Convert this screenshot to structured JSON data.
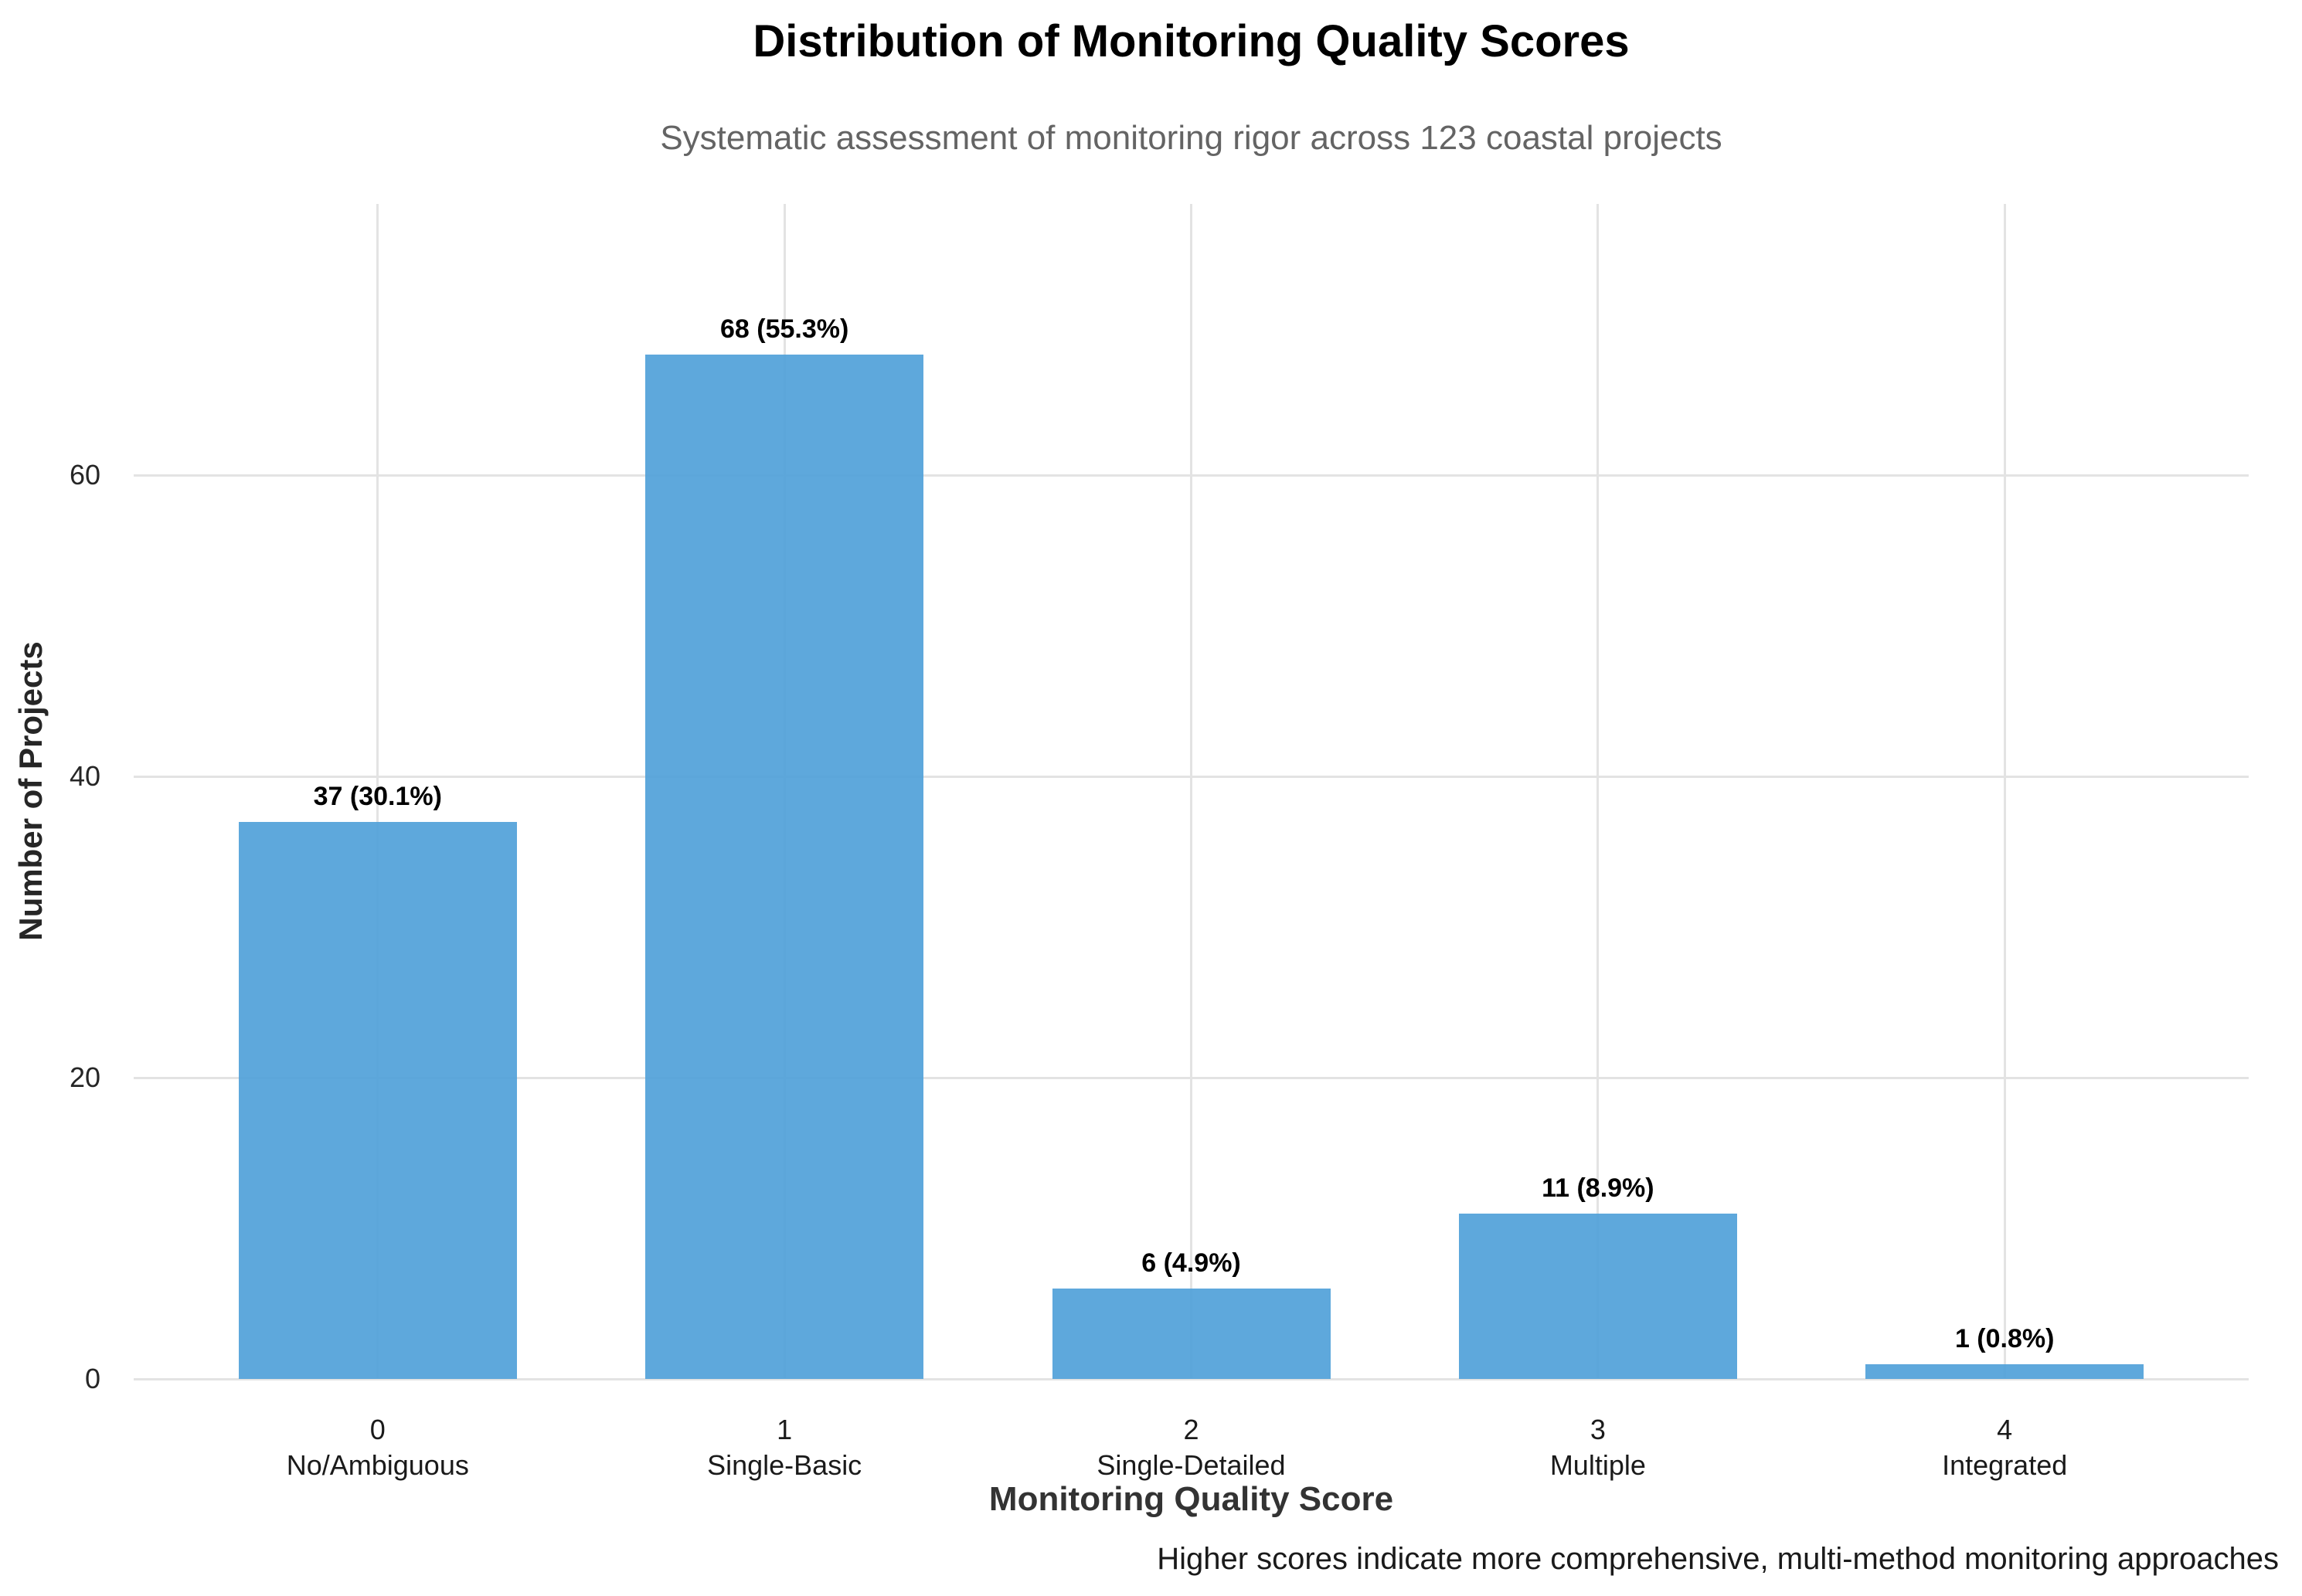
{
  "chart_data": {
    "type": "bar",
    "title": "Distribution of Monitoring Quality Scores",
    "subtitle": "Systematic assessment of monitoring rigor across 123 coastal projects",
    "xlabel": "Monitoring Quality Score",
    "ylabel": "Number of Projects",
    "caption": "Higher scores indicate more comprehensive, multi-method monitoring approaches",
    "categories": [
      {
        "score": "0",
        "name": "No/Ambiguous"
      },
      {
        "score": "1",
        "name": "Single-Basic"
      },
      {
        "score": "2",
        "name": "Single-Detailed"
      },
      {
        "score": "3",
        "name": "Multiple"
      },
      {
        "score": "4",
        "name": "Integrated"
      }
    ],
    "values": [
      37,
      68,
      6,
      11,
      1
    ],
    "percentages": [
      30.1,
      55.3,
      4.9,
      8.9,
      0.8
    ],
    "bar_labels": [
      "37 (30.1%)",
      "68 (55.3%)",
      "6 (4.9%)",
      "11 (8.9%)",
      "1 (0.8%)"
    ],
    "total_projects": 123,
    "yticks": [
      0,
      20,
      40,
      60
    ],
    "ylim": [
      0,
      78
    ],
    "grid": true,
    "legend": false,
    "bar_color": "#5AA9DF",
    "grid_color": "#e3e3e3"
  }
}
